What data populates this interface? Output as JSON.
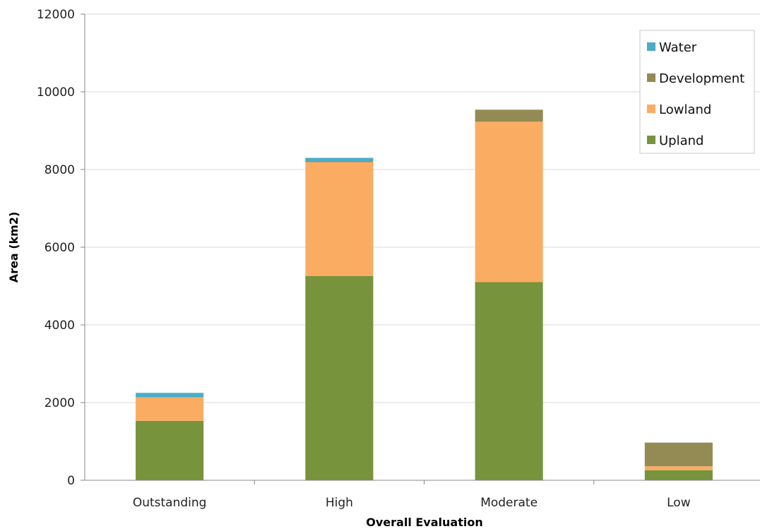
{
  "chart_data": {
    "type": "bar",
    "stacked": true,
    "title": "",
    "xlabel": "Overall Evaluation",
    "ylabel": "Area (km2)",
    "ylim": [
      0,
      12000
    ],
    "yticks": [
      0,
      2000,
      4000,
      6000,
      8000,
      10000,
      12000
    ],
    "grid": true,
    "legend_position": "top-right",
    "categories": [
      "Outstanding",
      "High",
      "Moderate",
      "Low"
    ],
    "series": [
      {
        "name": "Upland",
        "color": "#77933c",
        "values": [
          1530,
          5260,
          5100,
          260
        ]
      },
      {
        "name": "Lowland",
        "color": "#fbac63",
        "values": [
          600,
          2930,
          4130,
          100
        ]
      },
      {
        "name": "Development",
        "color": "#948a54",
        "values": [
          10,
          20,
          310,
          610
        ]
      },
      {
        "name": "Water",
        "color": "#4bacc6",
        "values": [
          110,
          90,
          0,
          0
        ]
      }
    ],
    "legend_order": [
      "Water",
      "Development",
      "Lowland",
      "Upland"
    ]
  }
}
